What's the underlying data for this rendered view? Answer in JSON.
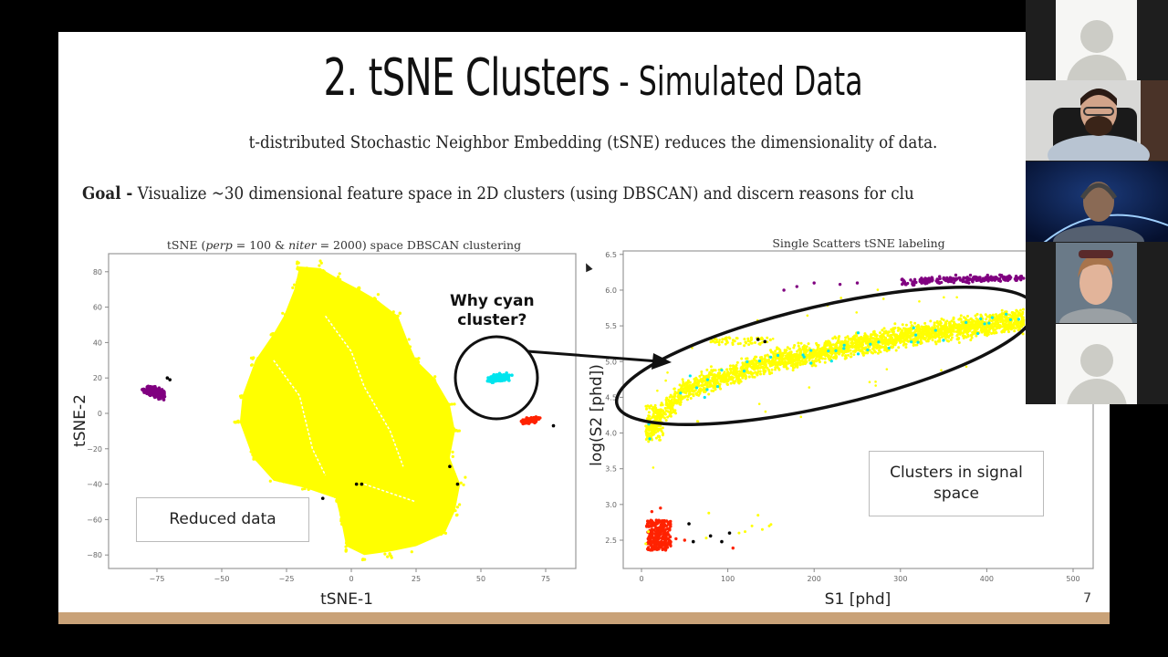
{
  "slide": {
    "title_main": "2. tSNE Clusters",
    "title_sep": " - ",
    "title_sub": "Simulated Data",
    "subtitle": "t-distributed Stochastic Neighbor Embedding (tSNE) reduces the dimensionality of data.",
    "goal_label": "Goal -",
    "goal_text": " Visualize ~30 dimensional feature space in 2D clusters (using DBSCAN) and discern reasons for clu",
    "page_number": "7",
    "callout_question_line1": "Why cyan",
    "callout_question_line2": "cluster?",
    "left_box_label": "Reduced data",
    "right_box_label_line1": "Clusters in signal",
    "right_box_label_line2": "space",
    "colors": {
      "footer": "#c9a278",
      "yellow": "#ffff00",
      "purple": "#800080",
      "cyan": "#00e5ee",
      "red": "#ff2200",
      "noise": "#000000"
    }
  },
  "chart_data": [
    {
      "type": "scatter",
      "title": "tSNE (perp = 100 & niter = 2000) space DBSCAN clustering",
      "title_parts": {
        "prefix": "tSNE (",
        "perp": "perp",
        "eq1": " = 100 & ",
        "niter": "niter",
        "eq2": " = 2000) space DBSCAN clustering"
      },
      "xlabel": "tSNE-1",
      "ylabel": "tSNE-2",
      "xlim": [
        -93,
        87
      ],
      "ylim": [
        -88,
        90
      ],
      "xticks": [
        -75,
        -50,
        -25,
        0,
        25,
        50,
        75
      ],
      "yticks": [
        80,
        60,
        40,
        20,
        0,
        -20,
        -40,
        -60,
        -80
      ],
      "grid": false,
      "series": [
        {
          "name": "cluster-yellow (main)",
          "color": "#ffff00",
          "approx_extent": {
            "x": [
              -43,
              40
            ],
            "y": [
              -80,
              83
            ]
          },
          "count_estimate": 8000
        },
        {
          "name": "cluster-purple",
          "color": "#800080",
          "approx_center": [
            -76,
            12
          ],
          "approx_extent": {
            "x": [
              -84,
              -67
            ],
            "y": [
              1,
              22
            ]
          }
        },
        {
          "name": "cluster-cyan",
          "color": "#00e5ee",
          "approx_center": [
            57,
            20
          ],
          "approx_extent": {
            "x": [
              47,
              65
            ],
            "y": [
              15,
              25
            ]
          }
        },
        {
          "name": "cluster-red",
          "color": "#ff2200",
          "approx_center": [
            69,
            -4
          ],
          "approx_extent": {
            "x": [
              63,
              75
            ],
            "y": [
              -9,
              0
            ]
          }
        },
        {
          "name": "noise",
          "color": "#000000",
          "points": [
            [
              -71,
              20
            ],
            [
              -70,
              19
            ],
            [
              2,
              -40
            ],
            [
              4,
              -40
            ],
            [
              -11,
              -48
            ],
            [
              38,
              -30
            ],
            [
              41,
              -40
            ],
            [
              78,
              -7
            ]
          ]
        }
      ]
    },
    {
      "type": "scatter",
      "title": "Single Scatters tSNE labeling",
      "xlabel": "S1 [phd]",
      "ylabel": "log(S2 [phd])",
      "xlim": [
        -20,
        525
      ],
      "ylim": [
        2.1,
        6.55
      ],
      "xticks": [
        0,
        100,
        200,
        300,
        400,
        500
      ],
      "yticks": [
        2.5,
        3.0,
        3.5,
        4.0,
        4.5,
        5.0,
        5.5,
        6.0,
        6.5
      ],
      "grid": false,
      "series": [
        {
          "name": "yellow band",
          "color": "#ffff00",
          "trend": [
            [
              5,
              4.0
            ],
            [
              50,
              4.6
            ],
            [
              150,
              5.0
            ],
            [
              300,
              5.35
            ],
            [
              450,
              5.6
            ]
          ],
          "band_width": 0.35
        },
        {
          "name": "yellow side branch",
          "color": "#ffff00",
          "approx_extent": {
            "x": [
              80,
              150
            ],
            "y": [
              5.2,
              5.35
            ]
          }
        },
        {
          "name": "purple band",
          "color": "#800080",
          "approx_extent": {
            "x": [
              300,
              460
            ],
            "y": [
              6.05,
              6.25
            ]
          }
        },
        {
          "name": "cyan scattered within band",
          "color": "#00e5ee"
        },
        {
          "name": "red cluster",
          "color": "#ff2200",
          "approx_center": [
            20,
            2.55
          ],
          "approx_extent": {
            "x": [
              5,
              35
            ],
            "y": [
              2.35,
              2.95
            ]
          }
        },
        {
          "name": "noise",
          "color": "#000000",
          "points": [
            [
              55,
              2.73
            ],
            [
              80,
              2.56
            ],
            [
              60,
              2.48
            ],
            [
              93,
              2.48
            ],
            [
              102,
              2.6
            ],
            [
              135,
              5.31
            ],
            [
              143,
              5.28
            ]
          ]
        }
      ]
    }
  ],
  "video_panel": {
    "tiles": [
      {
        "type": "avatar",
        "label": "participant-1-no-video"
      },
      {
        "type": "camera",
        "label": "participant-2-camera"
      },
      {
        "type": "camera",
        "label": "participant-3-camera"
      },
      {
        "type": "camera",
        "label": "participant-4-camera"
      },
      {
        "type": "avatar",
        "label": "participant-5-no-video"
      }
    ]
  }
}
